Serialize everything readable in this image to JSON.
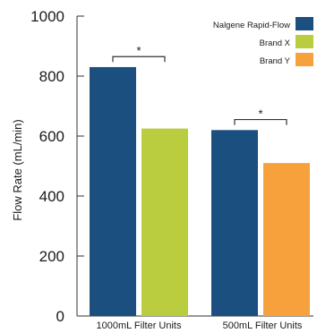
{
  "chart_data": {
    "type": "bar",
    "categories": [
      "1000mL Filter Units",
      "500mL Filter Units"
    ],
    "series": [
      {
        "name": "Nalgene Rapid-Flow",
        "color": "#1b4f80",
        "values": [
          830,
          620
        ]
      },
      {
        "name": "Brand X",
        "color": "#b9cd3f",
        "values": [
          625,
          null
        ]
      },
      {
        "name": "Brand Y",
        "color": "#f6a13b",
        "values": [
          null,
          510
        ]
      }
    ],
    "ylabel": "Flow Rate (mL/min)",
    "ylim": [
      0,
      1000
    ],
    "yticks": [
      "0",
      "200",
      "400",
      "600",
      "800",
      "1000"
    ],
    "grid": false,
    "legend_position": "top-right",
    "significance_marker": "*",
    "significance_brackets": [
      {
        "category": "1000mL Filter Units",
        "y": 865
      },
      {
        "category": "500mL Filter Units",
        "y": 655
      }
    ]
  }
}
